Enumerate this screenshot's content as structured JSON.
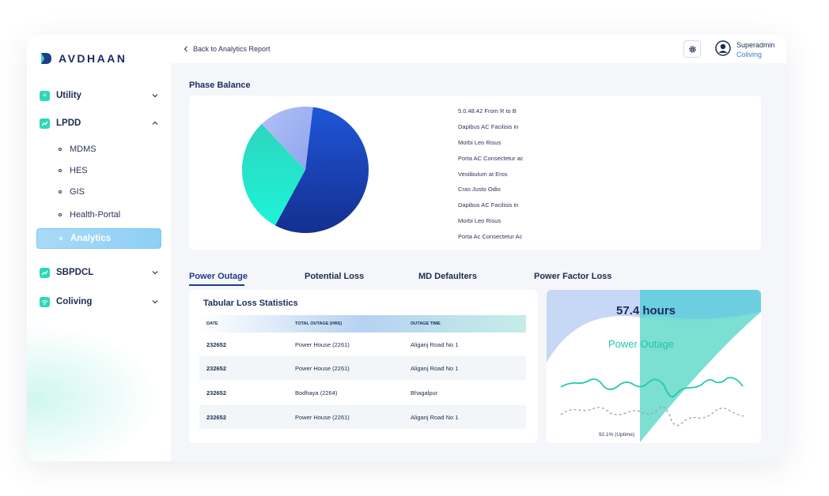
{
  "app": {
    "brand": "AVDHAAN"
  },
  "sidebar": {
    "items": [
      {
        "label": "Utility",
        "icon": "list-icon",
        "expanded": false
      },
      {
        "label": "LPDD",
        "icon": "chart-line-icon",
        "expanded": true,
        "children": [
          "MDMS",
          "HES",
          "GIS",
          "Health-Portal",
          "Analytics"
        ],
        "active_child": "Analytics"
      },
      {
        "label": "SBPDCL",
        "icon": "chart-line-icon",
        "expanded": false
      },
      {
        "label": "Coliving",
        "icon": "wifi-icon",
        "expanded": false
      }
    ]
  },
  "header": {
    "back_label": "Back to Analytics Report",
    "user": {
      "name": "Superadmin",
      "role": "Coliving"
    }
  },
  "phase_balance": {
    "title": "Phase Balance",
    "legend": [
      "5.0.48.42 From R to B",
      "Dapibus AC Facilisis in",
      "Morbi Leo Risus",
      "Porta AC Consectetur ac",
      "Vestibulum at Eros",
      "Cras Justo Odio",
      "Dapibus AC Facilisis in",
      "Morbi Leo Risus",
      "Porta Ac Consectetur Ac"
    ]
  },
  "chart_data": {
    "type": "pie",
    "values": [
      56,
      30,
      14
    ],
    "colors": [
      "#1a45b8",
      "#2ee0c6",
      "#a9b9f5"
    ]
  },
  "tabs": [
    {
      "label": "Power Outage",
      "active": true
    },
    {
      "label": "Potential Loss",
      "active": false
    },
    {
      "label": "MD Defaulters",
      "active": false
    },
    {
      "label": "Power Factor Loss",
      "active": false
    }
  ],
  "table": {
    "title": "Tabular Loss Statistics",
    "columns": [
      "DATE",
      "TOTAL OUTAGE (HRS)",
      "OUTAGE TIME"
    ],
    "rows": [
      [
        "232652",
        "Power House (2261)",
        "Aliganj Road No 1"
      ],
      [
        "232652",
        "Power House (2261)",
        "Aliganj Road No 1"
      ],
      [
        "232652",
        "Bodhaya (2264)",
        "Bhagalpur"
      ],
      [
        "232652",
        "Power House (2261)",
        "Aliganj Road No 1"
      ]
    ]
  },
  "outage": {
    "value": "57.4 hours",
    "label": "Power Outage",
    "uptime": "92.1% (Uptime)"
  },
  "colors": {
    "accent_green": "#2ed8b6",
    "navy": "#1b2c5c",
    "active_blue": "#8ecff5"
  }
}
